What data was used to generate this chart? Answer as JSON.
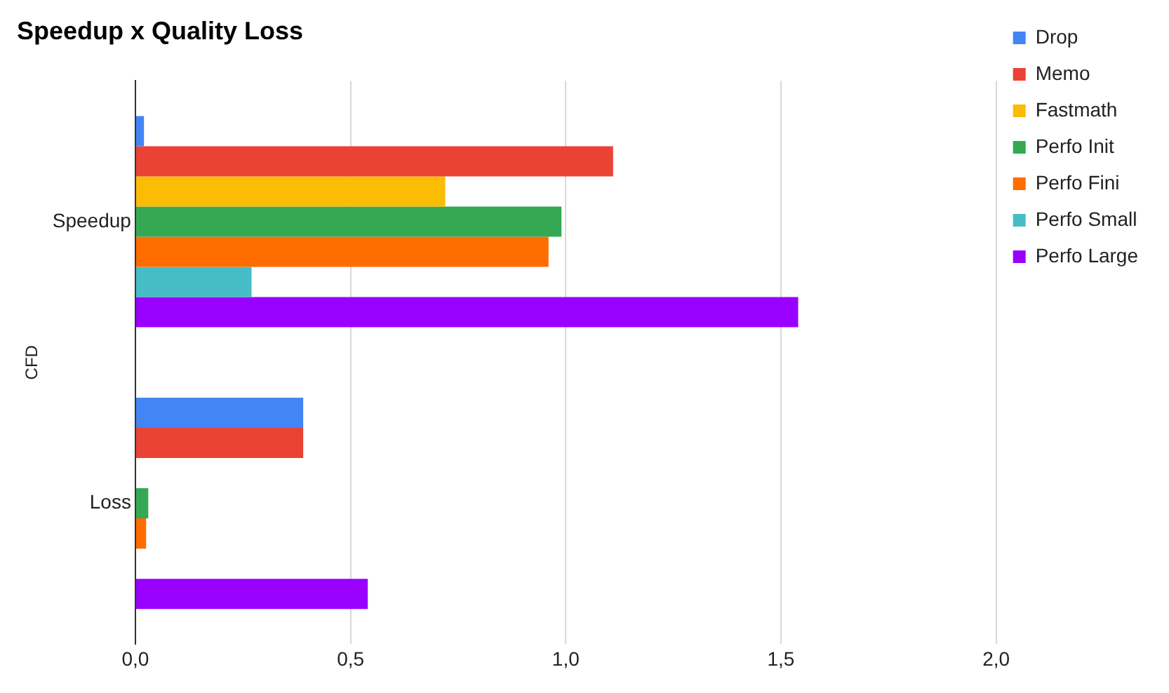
{
  "chart_data": {
    "type": "bar",
    "orientation": "horizontal",
    "title": "Speedup x Quality Loss",
    "ylabel": "CFD",
    "categories": [
      "Speedup",
      "Loss"
    ],
    "series": [
      {
        "name": "Drop",
        "color": "#4285f4",
        "values": [
          0.02,
          0.39
        ]
      },
      {
        "name": "Memo",
        "color": "#ea4335",
        "values": [
          1.11,
          0.39
        ]
      },
      {
        "name": "Fastmath",
        "color": "#fbbc04",
        "values": [
          0.72,
          null
        ]
      },
      {
        "name": "Perfo Init",
        "color": "#34a853",
        "values": [
          0.99,
          0.03
        ]
      },
      {
        "name": "Perfo Fini",
        "color": "#ff6d01",
        "values": [
          0.96,
          0.025
        ]
      },
      {
        "name": "Perfo Small",
        "color": "#46bdc6",
        "values": [
          0.27,
          null
        ]
      },
      {
        "name": "Perfo Large",
        "color": "#9900ff",
        "values": [
          1.54,
          0.54
        ]
      }
    ],
    "xlim": [
      0,
      2
    ],
    "xticks": [
      {
        "value": 0,
        "label": "0,0"
      },
      {
        "value": 0.5,
        "label": "0,5"
      },
      {
        "value": 1,
        "label": "1,0"
      },
      {
        "value": 1.5,
        "label": "1,5"
      },
      {
        "value": 2,
        "label": "2,0"
      }
    ],
    "grid": "x",
    "legend": "right"
  }
}
